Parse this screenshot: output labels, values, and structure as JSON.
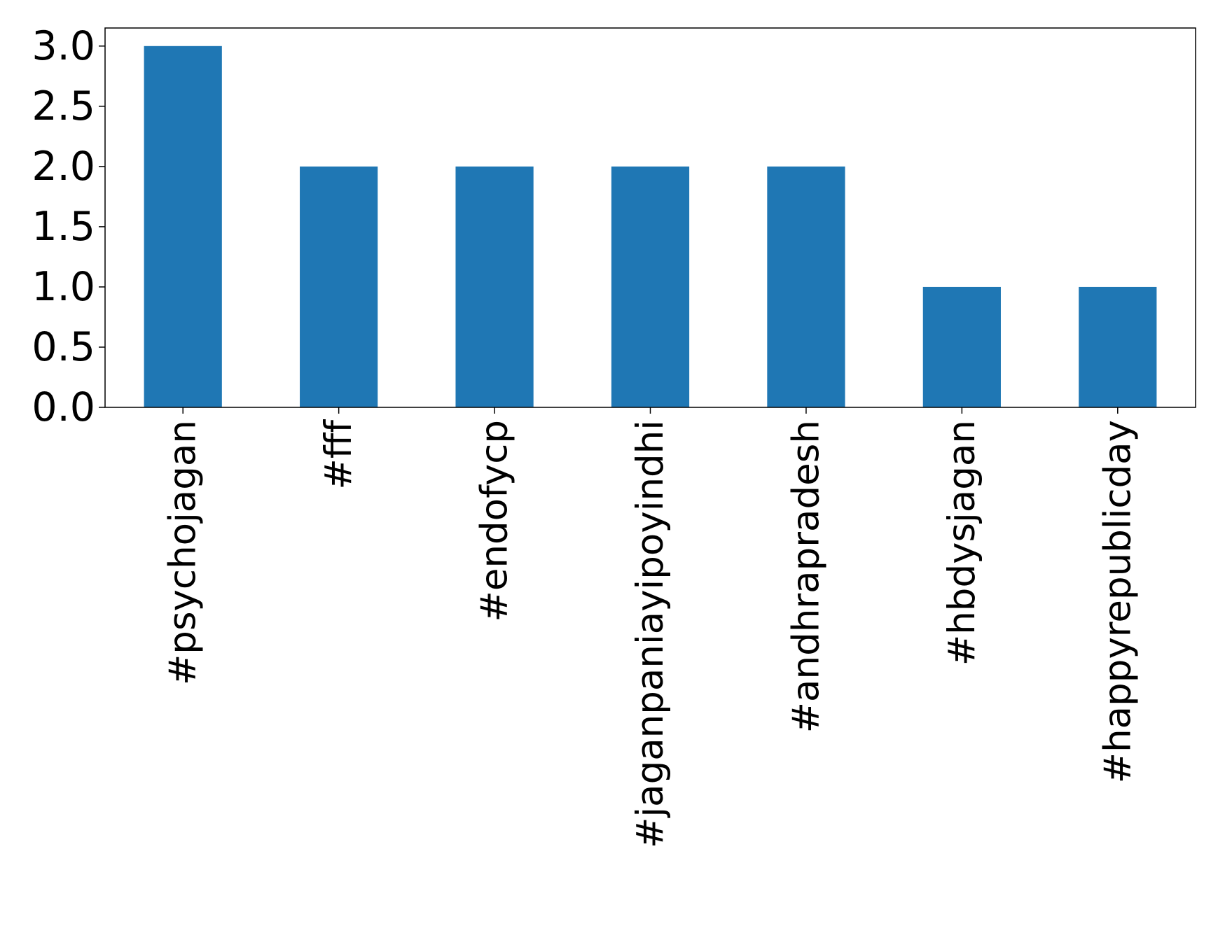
{
  "chart_data": {
    "type": "bar",
    "categories": [
      "#psychojagan",
      "#fff",
      "#endofycp",
      "#jaganpaniayipoyindhi",
      "#andhrapradesh",
      "#hbdysjagan",
      "#happyrepublicday"
    ],
    "values": [
      3,
      2,
      2,
      2,
      2,
      1,
      1
    ],
    "ylim": [
      0,
      3.15
    ],
    "yticks": [
      0.0,
      0.5,
      1.0,
      1.5,
      2.0,
      2.5,
      3.0
    ],
    "ytick_labels": [
      "0.0",
      "0.5",
      "1.0",
      "1.5",
      "2.0",
      "2.5",
      "3.0"
    ],
    "title": "",
    "xlabel": "",
    "ylabel": "",
    "grid": false,
    "legend": "none",
    "x_tick_label_rotation": "vertical",
    "colors": {
      "bar": "#1f77b4",
      "axes": "#000000"
    }
  }
}
